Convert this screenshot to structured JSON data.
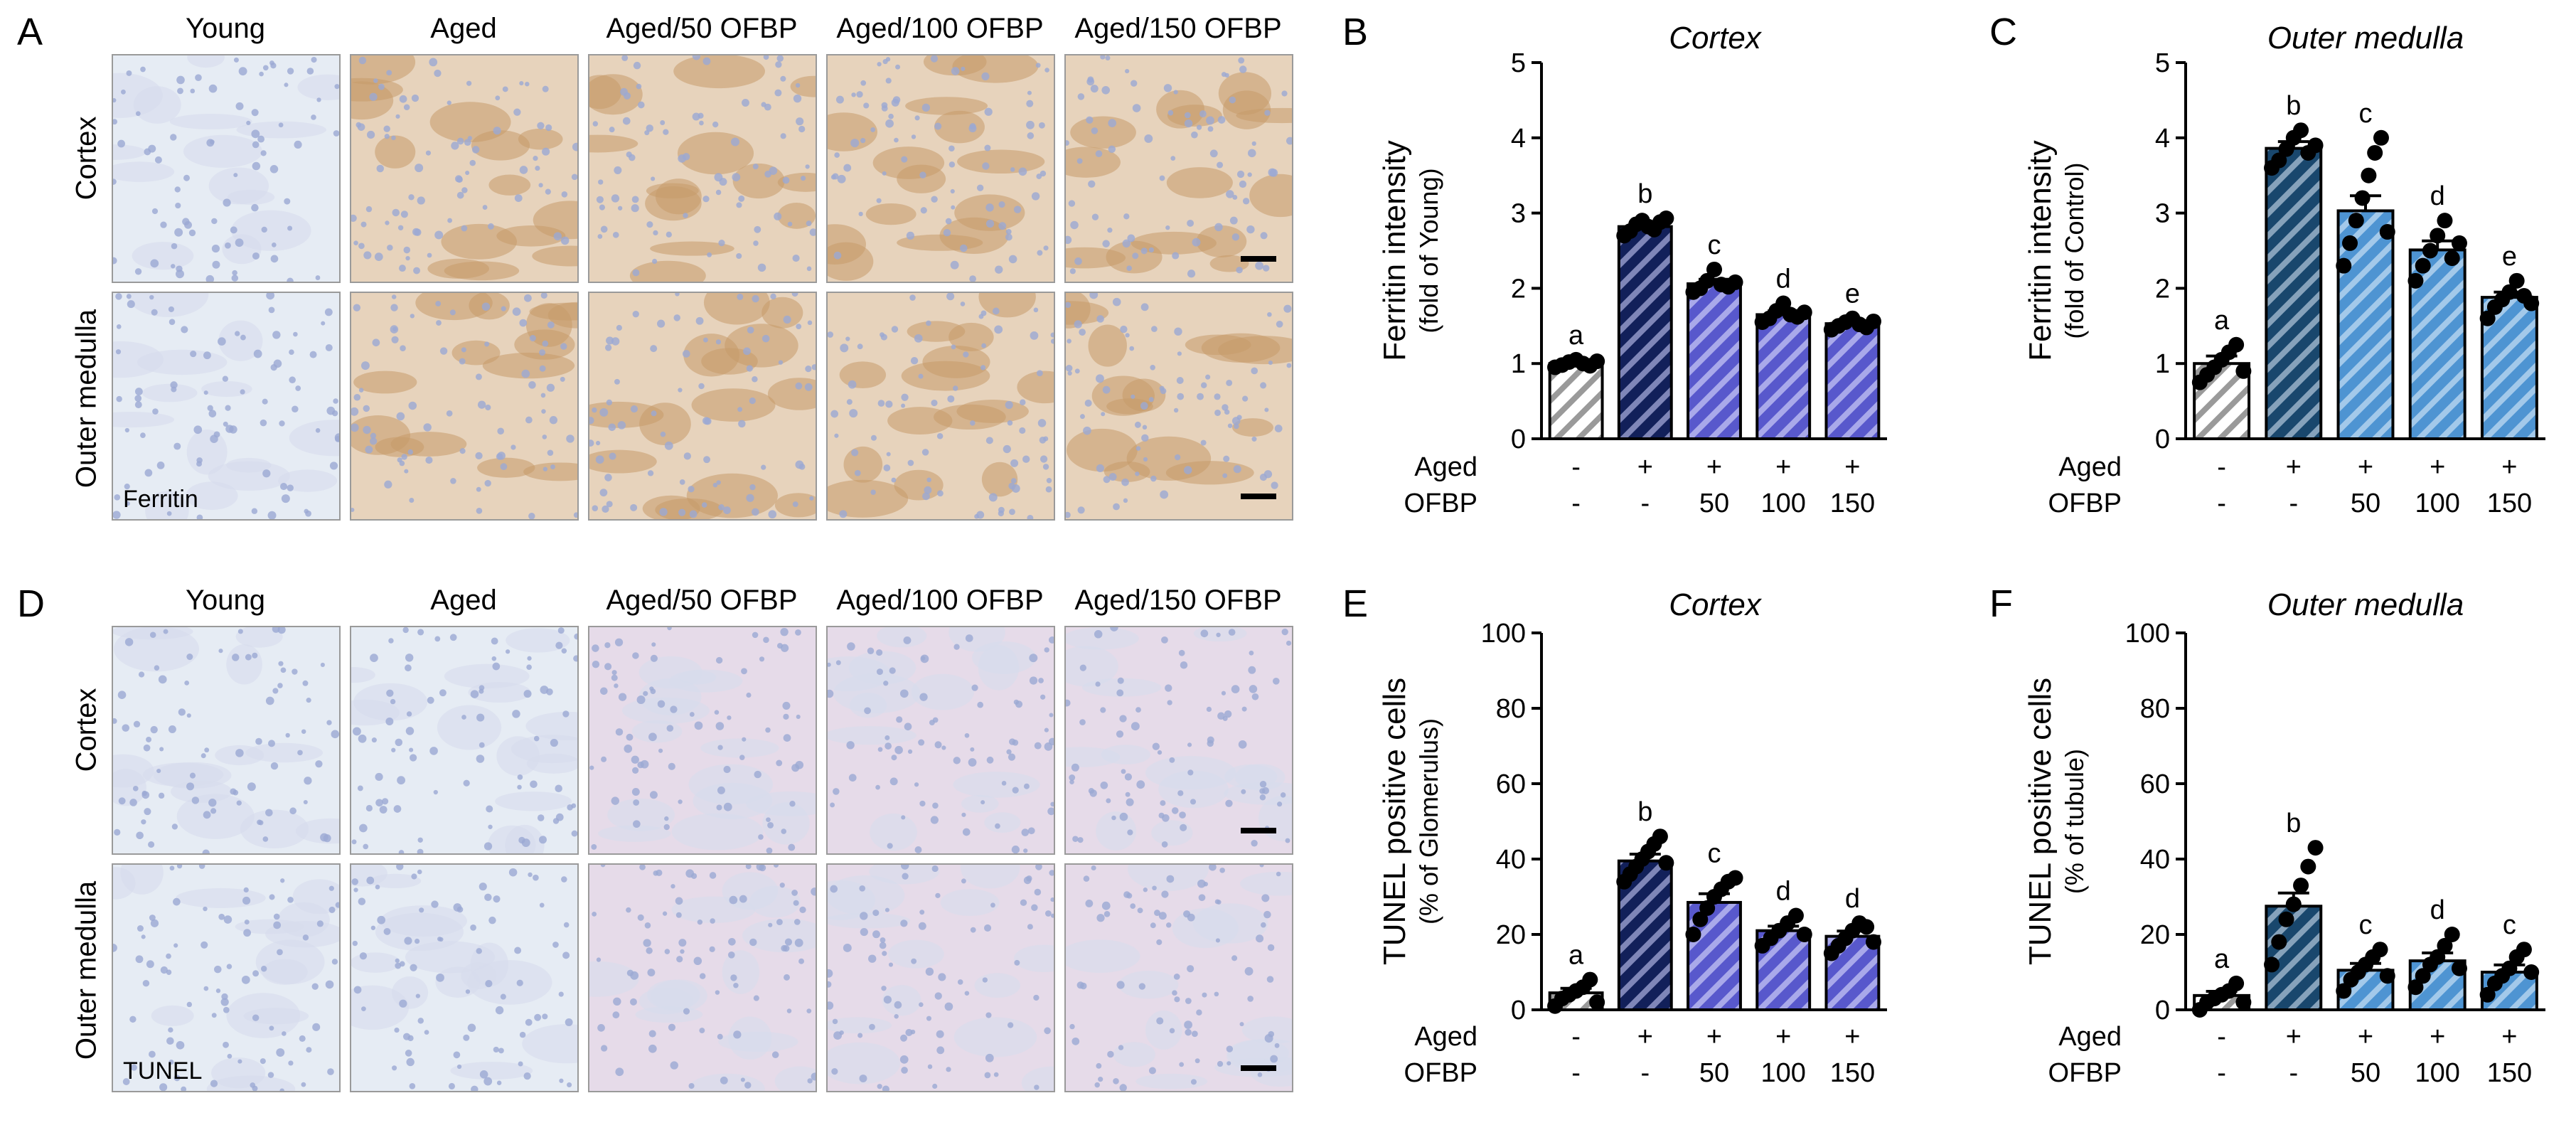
{
  "figure": {
    "panels": {
      "A": "A",
      "B": "B",
      "C": "C",
      "D": "D",
      "E": "E",
      "F": "F"
    },
    "groups": [
      "Young",
      "Aged",
      "Aged/50 OFBP",
      "Aged/100 OFBP",
      "Aged/150 OFBP"
    ],
    "regions": [
      "Cortex",
      "Outer medulla"
    ],
    "stains": {
      "ferritin": "Ferritin",
      "tunel": "TUNEL"
    }
  },
  "colors": {
    "young": "#ffffff",
    "aged_ferritin": "#12205a",
    "ofbp_cortex": "#5858cc",
    "aged_medulla": "#19476d",
    "ofbp_medulla": "#4e94d2",
    "stain_brown": "#c69a6a",
    "stain_blue": "#9ba9d3"
  },
  "chart_data": [
    {
      "panel": "B",
      "type": "bar",
      "title": "Cortex",
      "ylabel": "Ferritin intensity",
      "ylabel2": "(fold of Young)",
      "ylim": [
        0,
        5
      ],
      "yticks": [
        0,
        1,
        2,
        3,
        4,
        5
      ],
      "categories": [
        "Young",
        "Aged",
        "Aged/50 OFBP",
        "Aged/100 OFBP",
        "Aged/150 OFBP"
      ],
      "values": [
        1.0,
        2.82,
        2.06,
        1.65,
        1.53
      ],
      "errors": [
        0.03,
        0.06,
        0.06,
        0.05,
        0.04
      ],
      "letters": [
        "a",
        "b",
        "c",
        "d",
        "e"
      ],
      "points": [
        [
          0.95,
          0.98,
          1.02,
          1.05,
          1.0,
          0.97,
          1.03
        ],
        [
          2.7,
          2.76,
          2.85,
          2.9,
          2.82,
          2.78,
          2.88,
          2.93
        ],
        [
          1.95,
          2.0,
          2.1,
          2.25,
          2.05,
          2.02,
          2.08
        ],
        [
          1.55,
          1.6,
          1.7,
          1.8,
          1.65,
          1.62,
          1.68
        ],
        [
          1.45,
          1.5,
          1.55,
          1.6,
          1.52,
          1.48,
          1.56
        ]
      ],
      "fills": [
        "young",
        "aged_ferritin",
        "ofbp_cortex",
        "ofbp_cortex",
        "ofbp_cortex"
      ],
      "treatments": {
        "aged": [
          "-",
          "+",
          "+",
          "+",
          "+"
        ],
        "ofbp": [
          "-",
          "-",
          "50",
          "100",
          "150"
        ]
      }
    },
    {
      "panel": "C",
      "type": "bar",
      "title": "Outer medulla",
      "ylabel": "Ferritin intensity",
      "ylabel2": "(fold of Control)",
      "ylim": [
        0,
        5
      ],
      "yticks": [
        0,
        1,
        2,
        3,
        4,
        5
      ],
      "categories": [
        "Young",
        "Aged",
        "Aged/50 OFBP",
        "Aged/100 OFBP",
        "Aged/150 OFBP"
      ],
      "values": [
        1.0,
        3.86,
        3.03,
        2.51,
        1.88
      ],
      "errors": [
        0.1,
        0.09,
        0.2,
        0.12,
        0.07
      ],
      "letters": [
        "a",
        "b",
        "c",
        "d",
        "e"
      ],
      "points": [
        [
          0.75,
          0.85,
          0.95,
          1.05,
          1.15,
          1.25,
          0.9
        ],
        [
          3.6,
          3.7,
          3.85,
          4.0,
          4.1,
          3.8,
          3.9
        ],
        [
          2.3,
          2.6,
          2.9,
          3.2,
          3.5,
          3.8,
          4.0,
          2.75
        ],
        [
          2.1,
          2.3,
          2.5,
          2.7,
          2.9,
          2.4,
          2.6
        ],
        [
          1.6,
          1.75,
          1.85,
          1.95,
          2.1,
          1.9,
          1.8
        ]
      ],
      "fills": [
        "young",
        "aged_medulla",
        "ofbp_medulla",
        "ofbp_medulla",
        "ofbp_medulla"
      ],
      "treatments": {
        "aged": [
          "-",
          "+",
          "+",
          "+",
          "+"
        ],
        "ofbp": [
          "-",
          "-",
          "50",
          "100",
          "150"
        ]
      }
    },
    {
      "panel": "E",
      "type": "bar",
      "title": "Cortex",
      "ylabel": "TUNEL positive cells",
      "ylabel2": "(% of Glomerulus)",
      "ylim": [
        0,
        100
      ],
      "yticks": [
        0,
        20,
        40,
        60,
        80,
        100
      ],
      "categories": [
        "Young",
        "Aged",
        "Aged/50 OFBP",
        "Aged/100 OFBP",
        "Aged/150 OFBP"
      ],
      "values": [
        4.5,
        39.5,
        28.5,
        21.0,
        19.5
      ],
      "errors": [
        1.2,
        1.8,
        2.3,
        1.2,
        1.4
      ],
      "letters": [
        "a",
        "b",
        "c",
        "d",
        "d"
      ],
      "points": [
        [
          1,
          3,
          4,
          5,
          6,
          8,
          2
        ],
        [
          34,
          36,
          38,
          40,
          42,
          44,
          46,
          39
        ],
        [
          20,
          24,
          27,
          30,
          32,
          34,
          35
        ],
        [
          17,
          19,
          21,
          23,
          25,
          20
        ],
        [
          15,
          17,
          19,
          21,
          23,
          22,
          18
        ]
      ],
      "fills": [
        "young",
        "aged_ferritin",
        "ofbp_cortex",
        "ofbp_cortex",
        "ofbp_cortex"
      ],
      "treatments": {
        "aged": [
          "-",
          "+",
          "+",
          "+",
          "+"
        ],
        "ofbp": [
          "-",
          "-",
          "50",
          "100",
          "150"
        ]
      }
    },
    {
      "panel": "F",
      "type": "bar",
      "title": "Outer medulla",
      "ylabel": "TUNEL positive cells",
      "ylabel2": "(% of tubule)",
      "ylim": [
        0,
        100
      ],
      "yticks": [
        0,
        20,
        40,
        60,
        80,
        100
      ],
      "categories": [
        "Young",
        "Aged",
        "Aged/50 OFBP",
        "Aged/100 OFBP",
        "Aged/150 OFBP"
      ],
      "values": [
        3.8,
        27.5,
        10.5,
        13.0,
        10.0
      ],
      "errors": [
        1.1,
        3.5,
        1.8,
        2.1,
        1.9
      ],
      "letters": [
        "a",
        "b",
        "c",
        "d",
        "c"
      ],
      "points": [
        [
          0,
          2,
          3,
          4,
          5,
          7,
          2
        ],
        [
          12,
          18,
          24,
          28,
          33,
          38,
          43
        ],
        [
          5,
          8,
          10,
          12,
          14,
          16,
          9
        ],
        [
          6,
          9,
          12,
          14,
          17,
          20,
          11
        ],
        [
          4,
          7,
          9,
          11,
          14,
          16,
          10
        ]
      ],
      "fills": [
        "young",
        "aged_medulla",
        "ofbp_medulla",
        "ofbp_medulla",
        "ofbp_medulla"
      ],
      "treatments": {
        "aged": [
          "-",
          "+",
          "+",
          "+",
          "+"
        ],
        "ofbp": [
          "-",
          "-",
          "50",
          "100",
          "150"
        ]
      }
    }
  ],
  "row_labels": {
    "aged": "Aged",
    "ofbp": "OFBP"
  }
}
